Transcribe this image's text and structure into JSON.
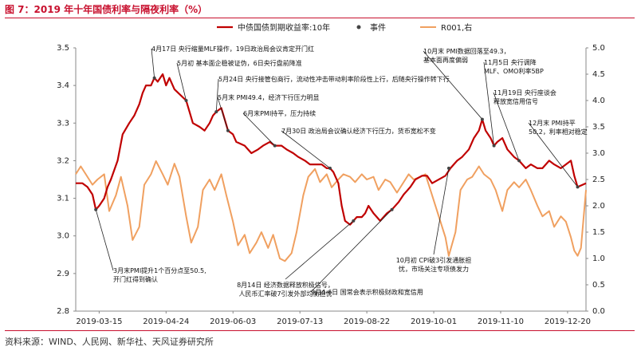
{
  "header": {
    "title": "图 7：2019 年十年国债利率与隔夜利率（%）"
  },
  "footer": {
    "source": "资料来源：WIND、人民网、新华社、天风证券研究所"
  },
  "chart_data": {
    "type": "line",
    "title": "",
    "legend": {
      "placement": "top",
      "items": [
        "中债国债到期收益率:10年",
        "事件",
        "R001,右"
      ]
    },
    "x_ticks": [
      "2019-03-15",
      "2019-04-24",
      "2019-06-03",
      "2019-07-13",
      "2019-08-22",
      "2019-10-01",
      "2019-11-10",
      "2019-12-20"
    ],
    "x_range": [
      "2019-03-01",
      "2019-12-31"
    ],
    "y_left": {
      "range": [
        2.8,
        3.5
      ],
      "ticks": [
        "2.8",
        "2.9",
        "3.0",
        "3.1",
        "3.2",
        "3.3",
        "3.4",
        "3.5"
      ]
    },
    "y_right": {
      "range": [
        0.0,
        5.0
      ],
      "ticks": [
        "0.0",
        "0.5",
        "1.0",
        "1.5",
        "2.0",
        "2.5",
        "3.0",
        "3.5",
        "4.0",
        "4.5",
        "5.0"
      ]
    },
    "colors": {
      "bond": "#c00000",
      "event": "#444444",
      "r001": "#f0a060",
      "title": "#c8102e"
    },
    "series": [
      {
        "name": "中债国债到期收益率:10年",
        "axis": "left",
        "points": [
          [
            "2019-03-01",
            3.14
          ],
          [
            "2019-03-05",
            3.14
          ],
          [
            "2019-03-08",
            3.13
          ],
          [
            "2019-03-11",
            3.11
          ],
          [
            "2019-03-13",
            3.07
          ],
          [
            "2019-03-15",
            3.08
          ],
          [
            "2019-03-18",
            3.1
          ],
          [
            "2019-03-20",
            3.13
          ],
          [
            "2019-03-22",
            3.15
          ],
          [
            "2019-03-26",
            3.2
          ],
          [
            "2019-03-29",
            3.27
          ],
          [
            "2019-04-02",
            3.3
          ],
          [
            "2019-04-05",
            3.32
          ],
          [
            "2019-04-08",
            3.35
          ],
          [
            "2019-04-10",
            3.38
          ],
          [
            "2019-04-12",
            3.4
          ],
          [
            "2019-04-15",
            3.4
          ],
          [
            "2019-04-17",
            3.42
          ],
          [
            "2019-04-19",
            3.41
          ],
          [
            "2019-04-22",
            3.43
          ],
          [
            "2019-04-24",
            3.4
          ],
          [
            "2019-04-26",
            3.42
          ],
          [
            "2019-04-29",
            3.39
          ],
          [
            "2019-05-06",
            3.36
          ],
          [
            "2019-05-08",
            3.33
          ],
          [
            "2019-05-10",
            3.3
          ],
          [
            "2019-05-14",
            3.29
          ],
          [
            "2019-05-17",
            3.28
          ],
          [
            "2019-05-20",
            3.3
          ],
          [
            "2019-05-22",
            3.32
          ],
          [
            "2019-05-24",
            3.33
          ],
          [
            "2019-05-27",
            3.34
          ],
          [
            "2019-05-29",
            3.31
          ],
          [
            "2019-05-31",
            3.28
          ],
          [
            "2019-06-03",
            3.27
          ],
          [
            "2019-06-05",
            3.25
          ],
          [
            "2019-06-10",
            3.24
          ],
          [
            "2019-06-14",
            3.22
          ],
          [
            "2019-06-18",
            3.23
          ],
          [
            "2019-06-21",
            3.24
          ],
          [
            "2019-06-25",
            3.25
          ],
          [
            "2019-06-28",
            3.24
          ],
          [
            "2019-07-02",
            3.24
          ],
          [
            "2019-07-05",
            3.23
          ],
          [
            "2019-07-09",
            3.22
          ],
          [
            "2019-07-12",
            3.21
          ],
          [
            "2019-07-16",
            3.2
          ],
          [
            "2019-07-19",
            3.19
          ],
          [
            "2019-07-23",
            3.19
          ],
          [
            "2019-07-26",
            3.19
          ],
          [
            "2019-07-29",
            3.18
          ],
          [
            "2019-07-31",
            3.18
          ],
          [
            "2019-08-02",
            3.17
          ],
          [
            "2019-08-05",
            3.14
          ],
          [
            "2019-08-07",
            3.08
          ],
          [
            "2019-08-09",
            3.04
          ],
          [
            "2019-08-12",
            3.03
          ],
          [
            "2019-08-14",
            3.04
          ],
          [
            "2019-08-16",
            3.05
          ],
          [
            "2019-08-19",
            3.05
          ],
          [
            "2019-08-21",
            3.06
          ],
          [
            "2019-08-23",
            3.08
          ],
          [
            "2019-08-26",
            3.06
          ],
          [
            "2019-08-28",
            3.05
          ],
          [
            "2019-08-30",
            3.04
          ],
          [
            "2019-09-03",
            3.06
          ],
          [
            "2019-09-06",
            3.07
          ],
          [
            "2019-09-10",
            3.09
          ],
          [
            "2019-09-13",
            3.11
          ],
          [
            "2019-09-17",
            3.13
          ],
          [
            "2019-09-20",
            3.15
          ],
          [
            "2019-09-24",
            3.16
          ],
          [
            "2019-09-27",
            3.16
          ],
          [
            "2019-09-30",
            3.14
          ],
          [
            "2019-10-08",
            3.16
          ],
          [
            "2019-10-11",
            3.18
          ],
          [
            "2019-10-15",
            3.2
          ],
          [
            "2019-10-18",
            3.21
          ],
          [
            "2019-10-22",
            3.23
          ],
          [
            "2019-10-25",
            3.26
          ],
          [
            "2019-10-28",
            3.28
          ],
          [
            "2019-10-30",
            3.31
          ],
          [
            "2019-11-01",
            3.28
          ],
          [
            "2019-11-04",
            3.26
          ],
          [
            "2019-11-06",
            3.24
          ],
          [
            "2019-11-08",
            3.25
          ],
          [
            "2019-11-11",
            3.26
          ],
          [
            "2019-11-14",
            3.23
          ],
          [
            "2019-11-18",
            3.21
          ],
          [
            "2019-11-21",
            3.2
          ],
          [
            "2019-11-25",
            3.18
          ],
          [
            "2019-11-28",
            3.19
          ],
          [
            "2019-12-02",
            3.18
          ],
          [
            "2019-12-05",
            3.18
          ],
          [
            "2019-12-09",
            3.2
          ],
          [
            "2019-12-12",
            3.19
          ],
          [
            "2019-12-16",
            3.18
          ],
          [
            "2019-12-19",
            3.19
          ],
          [
            "2019-12-22",
            3.2
          ],
          [
            "2019-12-24",
            3.16
          ],
          [
            "2019-12-26",
            3.13
          ],
          [
            "2019-12-31",
            3.14
          ]
        ]
      },
      {
        "name": "R001,右",
        "axis": "right",
        "points": [
          [
            "2019-03-01",
            2.6
          ],
          [
            "2019-03-04",
            2.75
          ],
          [
            "2019-03-07",
            2.6
          ],
          [
            "2019-03-11",
            2.4
          ],
          [
            "2019-03-14",
            2.5
          ],
          [
            "2019-03-18",
            2.6
          ],
          [
            "2019-03-21",
            1.9
          ],
          [
            "2019-03-25",
            2.2
          ],
          [
            "2019-03-28",
            2.55
          ],
          [
            "2019-04-01",
            2.0
          ],
          [
            "2019-04-04",
            1.35
          ],
          [
            "2019-04-08",
            1.6
          ],
          [
            "2019-04-11",
            2.4
          ],
          [
            "2019-04-15",
            2.6
          ],
          [
            "2019-04-18",
            2.85
          ],
          [
            "2019-04-22",
            2.6
          ],
          [
            "2019-04-25",
            2.4
          ],
          [
            "2019-04-29",
            2.8
          ],
          [
            "2019-05-02",
            2.55
          ],
          [
            "2019-05-06",
            1.8
          ],
          [
            "2019-05-09",
            1.3
          ],
          [
            "2019-05-13",
            1.6
          ],
          [
            "2019-05-16",
            2.3
          ],
          [
            "2019-05-20",
            2.5
          ],
          [
            "2019-05-23",
            2.3
          ],
          [
            "2019-05-27",
            2.6
          ],
          [
            "2019-05-30",
            2.2
          ],
          [
            "2019-06-03",
            1.7
          ],
          [
            "2019-06-06",
            1.25
          ],
          [
            "2019-06-10",
            1.45
          ],
          [
            "2019-06-13",
            1.1
          ],
          [
            "2019-06-17",
            1.3
          ],
          [
            "2019-06-20",
            1.5
          ],
          [
            "2019-06-24",
            1.2
          ],
          [
            "2019-06-27",
            1.45
          ],
          [
            "2019-07-01",
            1.0
          ],
          [
            "2019-07-04",
            0.95
          ],
          [
            "2019-07-08",
            1.1
          ],
          [
            "2019-07-11",
            1.5
          ],
          [
            "2019-07-15",
            2.2
          ],
          [
            "2019-07-18",
            2.55
          ],
          [
            "2019-07-22",
            2.7
          ],
          [
            "2019-07-25",
            2.45
          ],
          [
            "2019-07-29",
            2.6
          ],
          [
            "2019-08-01",
            2.35
          ],
          [
            "2019-08-05",
            2.5
          ],
          [
            "2019-08-08",
            2.6
          ],
          [
            "2019-08-12",
            2.55
          ],
          [
            "2019-08-15",
            2.45
          ],
          [
            "2019-08-19",
            2.6
          ],
          [
            "2019-08-22",
            2.5
          ],
          [
            "2019-08-26",
            2.55
          ],
          [
            "2019-08-29",
            2.3
          ],
          [
            "2019-09-02",
            2.5
          ],
          [
            "2019-09-05",
            2.45
          ],
          [
            "2019-09-09",
            2.25
          ],
          [
            "2019-09-12",
            2.4
          ],
          [
            "2019-09-16",
            2.6
          ],
          [
            "2019-09-19",
            2.5
          ],
          [
            "2019-09-23",
            2.55
          ],
          [
            "2019-09-26",
            2.6
          ],
          [
            "2019-09-30",
            2.2
          ],
          [
            "2019-10-08",
            1.4
          ],
          [
            "2019-10-10",
            1.05
          ],
          [
            "2019-10-14",
            1.5
          ],
          [
            "2019-10-17",
            2.3
          ],
          [
            "2019-10-21",
            2.5
          ],
          [
            "2019-10-24",
            2.55
          ],
          [
            "2019-10-28",
            2.75
          ],
          [
            "2019-10-31",
            2.6
          ],
          [
            "2019-11-04",
            2.5
          ],
          [
            "2019-11-07",
            2.3
          ],
          [
            "2019-11-11",
            1.9
          ],
          [
            "2019-11-14",
            2.3
          ],
          [
            "2019-11-18",
            2.45
          ],
          [
            "2019-11-21",
            2.35
          ],
          [
            "2019-11-25",
            2.5
          ],
          [
            "2019-11-28",
            2.3
          ],
          [
            "2019-12-02",
            2.0
          ],
          [
            "2019-12-05",
            1.8
          ],
          [
            "2019-12-09",
            1.9
          ],
          [
            "2019-12-12",
            1.6
          ],
          [
            "2019-12-16",
            1.8
          ],
          [
            "2019-12-19",
            1.7
          ],
          [
            "2019-12-22",
            1.4
          ],
          [
            "2019-12-24",
            1.15
          ],
          [
            "2019-12-26",
            1.05
          ],
          [
            "2019-12-28",
            1.2
          ],
          [
            "2019-12-31",
            2.3
          ]
        ]
      }
    ],
    "events": [
      {
        "date": "2019-03-13",
        "value": 3.07,
        "text": [
          "3月末PMI提升1个百分点至50.5,",
          "开门红得到确认"
        ]
      },
      {
        "date": "2019-04-17",
        "value": 3.42,
        "text": [
          "4月17日 央行缩量MLF操作，19日政治局会议肯定开门红"
        ]
      },
      {
        "date": "2019-05-06",
        "value": 3.36,
        "text": [
          "5月初 基本面企稳被证伪，6日央行盘前降准"
        ]
      },
      {
        "date": "2019-05-24",
        "value": 3.33,
        "text": [
          "5月24日 央行接管包商行，流动性冲击带动利率阶段性上行，后随央行操作转下行"
        ]
      },
      {
        "date": "2019-05-31",
        "value": 3.28,
        "text": [
          "5月末 PMI49.4，经济下行压力明显"
        ]
      },
      {
        "date": "2019-06-28",
        "value": 3.24,
        "text": [
          "6月末PMI持平，压力持续"
        ]
      },
      {
        "date": "2019-07-31",
        "value": 3.18,
        "text": [
          "7月30日 政治局会议确认经济下行压力，货币宽松不变"
        ]
      },
      {
        "date": "2019-08-14",
        "value": 3.04,
        "text": [
          "8月14日 经济数据释放积极信号，",
          "人民币汇率破7引发外部均衡担忧"
        ]
      },
      {
        "date": "2019-09-06",
        "value": 3.07,
        "text": [
          "9月4-6日 国常会表示积极财政和宽信用"
        ]
      },
      {
        "date": "2019-10-10",
        "value": 3.18,
        "text": [
          "10月初 CPI破3引发通胀担",
          "忧，市场关注专项债发力"
        ]
      },
      {
        "date": "2019-10-30",
        "value": 3.31,
        "text": [
          "10月末 PMI数据回落至49.3，",
          "基本面再度偏弱"
        ]
      },
      {
        "date": "2019-11-06",
        "value": 3.24,
        "text": [
          "11月5日 央行调降",
          "MLF、OMO利率5BP"
        ]
      },
      {
        "date": "2019-11-21",
        "value": 3.2,
        "text": [
          "11月19日 央行座谈会",
          "释放宽信用信号"
        ]
      },
      {
        "date": "2019-12-26",
        "value": 3.13,
        "text": [
          "12月末 PMI持平",
          "50.2，利率相对稳定"
        ]
      }
    ]
  }
}
